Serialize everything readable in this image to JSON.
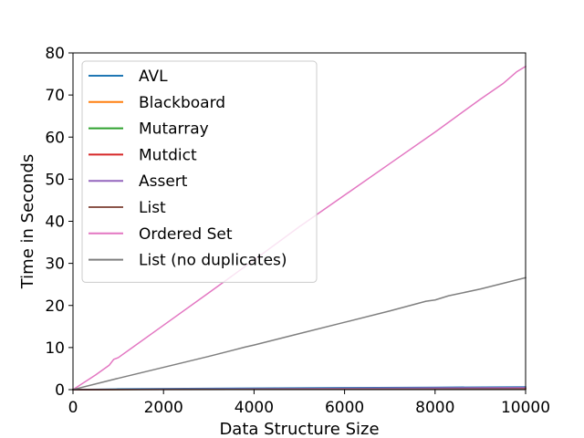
{
  "chart_data": {
    "type": "line",
    "xlabel": "Data Structure Size",
    "ylabel": "Time in Seconds",
    "xlim": [
      0,
      10000
    ],
    "ylim": [
      0,
      80
    ],
    "xticks": [
      0,
      2000,
      4000,
      6000,
      8000,
      10000
    ],
    "yticks": [
      0,
      10,
      20,
      30,
      40,
      50,
      60,
      70,
      80
    ],
    "grid": false,
    "legend_position": "top-left",
    "series": [
      {
        "name": "AVL",
        "color": "#1f77b4",
        "x": [
          0,
          1000,
          2000,
          4000,
          6000,
          8000,
          10000
        ],
        "y": [
          0.0,
          0.15,
          0.25,
          0.35,
          0.45,
          0.55,
          0.65
        ]
      },
      {
        "name": "Blackboard",
        "color": "#ff7f0e",
        "x": [
          0,
          2000,
          4000,
          6000,
          8000,
          10000
        ],
        "y": [
          0.0,
          0.08,
          0.12,
          0.16,
          0.2,
          0.25
        ]
      },
      {
        "name": "Mutarray",
        "color": "#2ca02c",
        "x": [
          0,
          2000,
          4000,
          6000,
          8000,
          10000
        ],
        "y": [
          0.0,
          0.05,
          0.08,
          0.1,
          0.13,
          0.15
        ]
      },
      {
        "name": "Mutdict",
        "color": "#d62728",
        "x": [
          0,
          2000,
          4000,
          6000,
          8000,
          10000
        ],
        "y": [
          0.0,
          0.06,
          0.09,
          0.12,
          0.15,
          0.18
        ]
      },
      {
        "name": "Assert",
        "color": "#9467bd",
        "x": [
          0,
          2000,
          4000,
          6000,
          8000,
          10000
        ],
        "y": [
          0.0,
          0.1,
          0.2,
          0.3,
          0.4,
          0.5
        ]
      },
      {
        "name": "List",
        "color": "#8c564b",
        "x": [
          0,
          2000,
          4000,
          6000,
          8000,
          10000
        ],
        "y": [
          0.0,
          0.04,
          0.07,
          0.1,
          0.12,
          0.14
        ]
      },
      {
        "name": "Ordered Set",
        "color": "#e377c2",
        "x": [
          0,
          500,
          800,
          900,
          1000,
          2000,
          3000,
          4000,
          5000,
          6000,
          7000,
          8000,
          9000,
          9500,
          9800,
          10000
        ],
        "y": [
          0,
          3.5,
          5.8,
          7.2,
          7.6,
          15.3,
          23.0,
          30.8,
          38.7,
          46.2,
          53.7,
          61.2,
          69.0,
          72.7,
          75.5,
          76.8
        ]
      },
      {
        "name": "List (no duplicates)",
        "color": "#7f7f7f",
        "x": [
          0,
          1000,
          2000,
          3000,
          3800,
          4000,
          5000,
          6000,
          7000,
          7800,
          8000,
          8300,
          9000,
          10000
        ],
        "y": [
          0,
          2.7,
          5.3,
          7.9,
          10.1,
          10.6,
          13.3,
          16.0,
          18.7,
          21.0,
          21.3,
          22.3,
          23.9,
          26.6
        ]
      }
    ]
  }
}
